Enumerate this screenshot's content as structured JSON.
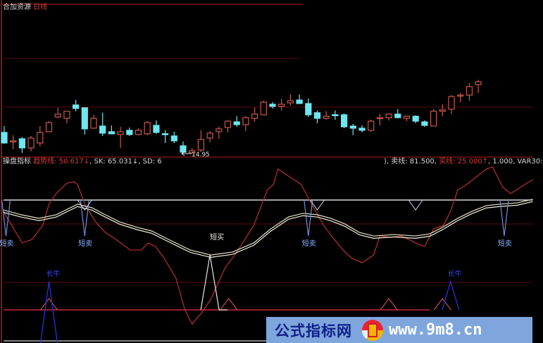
{
  "main_header": {
    "stock_name": "合加资源",
    "period": "日线"
  },
  "low_marker": "14.95",
  "indicator_header": {
    "name": "操盘指标",
    "trend_label": "趋势线:",
    "trend_value": "50.617↓",
    "rest_left": ", SK: 65.031↓, SD: 6",
    "rest_right_prefix": "), 卖线: 81.500, ",
    "buy_line": "买线: 25.000↑",
    "rest_right_suffix": ", 1.000, VAR30:"
  },
  "signal_labels": {
    "short_sell": "短卖",
    "short_buy": "短买",
    "long_bull": "长牛"
  },
  "banner": {
    "site_name": "公式指标网",
    "url": "www.9m8.cn"
  },
  "colors": {
    "up": "#c8584a",
    "down": "#6fe6f0",
    "grid": "#5a0d12",
    "axis": "#b01c24",
    "signal_blue": "#6a8fd8",
    "long_blue": "#2432d8"
  },
  "chart_data": [
    {
      "type": "candlestick",
      "title": "合加资源 日线",
      "annotations": [
        "14.95"
      ],
      "candles": [
        [
          16.45,
          16.9,
          15.65,
          15.7
        ],
        [
          15.8,
          16.25,
          15.25,
          15.85
        ],
        [
          16.0,
          16.1,
          15.0,
          15.35
        ],
        [
          15.35,
          16.2,
          15.1,
          16.05
        ],
        [
          15.7,
          16.9,
          15.45,
          16.45
        ],
        [
          16.5,
          17.25,
          16.5,
          17.15
        ],
        [
          17.55,
          18.2,
          17.45,
          17.75
        ],
        [
          17.45,
          17.95,
          17.1,
          17.95
        ],
        [
          18.4,
          18.75,
          17.95,
          18.15
        ],
        [
          18.2,
          18.2,
          16.3,
          16.7
        ],
        [
          16.75,
          17.7,
          16.75,
          17.45
        ],
        [
          16.9,
          17.85,
          16.2,
          16.4
        ],
        [
          16.5,
          16.95,
          16.35,
          16.35
        ],
        [
          16.3,
          16.85,
          15.35,
          16.5
        ],
        [
          16.6,
          16.8,
          16.2,
          16.3
        ],
        [
          16.3,
          16.75,
          16.25,
          16.6
        ],
        [
          16.35,
          17.25,
          16.25,
          17.15
        ],
        [
          16.95,
          17.3,
          16.35,
          16.45
        ],
        [
          16.36,
          16.6,
          15.7,
          16.35
        ],
        [
          16.2,
          16.5,
          15.7,
          15.85
        ],
        [
          15.5,
          15.8,
          14.95,
          15.05
        ],
        [
          15.0,
          15.35,
          15.0,
          15.15
        ],
        [
          15.2,
          16.6,
          15.05,
          15.95
        ],
        [
          16.05,
          16.55,
          15.75,
          16.4
        ],
        [
          16.5,
          16.85,
          16.0,
          16.7
        ],
        [
          16.8,
          17.3,
          16.45,
          17.25
        ],
        [
          17.2,
          17.6,
          16.85,
          17.0
        ],
        [
          17.0,
          17.6,
          16.55,
          17.5
        ],
        [
          17.45,
          18.2,
          17.2,
          17.75
        ],
        [
          17.7,
          18.7,
          17.7,
          18.6
        ],
        [
          18.45,
          18.6,
          18.15,
          18.3
        ],
        [
          18.3,
          18.85,
          18.0,
          18.45
        ],
        [
          18.55,
          19.15,
          18.35,
          18.7
        ],
        [
          18.75,
          19.15,
          18.5,
          18.5
        ],
        [
          18.5,
          18.85,
          17.55,
          17.7
        ],
        [
          17.85,
          18.0,
          17.1,
          17.45
        ],
        [
          17.45,
          17.95,
          17.35,
          17.6
        ],
        [
          17.71,
          18.0,
          17.35,
          17.7
        ],
        [
          17.7,
          17.8,
          16.75,
          16.85
        ],
        [
          16.9,
          17.05,
          16.25,
          16.75
        ],
        [
          16.75,
          16.95,
          16.45,
          16.6
        ],
        [
          16.6,
          17.35,
          16.5,
          17.25
        ],
        [
          17.49,
          17.75,
          16.95,
          17.5
        ],
        [
          17.5,
          17.8,
          17.3,
          17.75
        ],
        [
          17.75,
          18.1,
          17.45,
          17.5
        ],
        [
          17.45,
          17.65,
          17.25,
          17.6
        ],
        [
          17.6,
          17.65,
          17.1,
          17.25
        ],
        [
          17.2,
          17.3,
          16.85,
          16.95
        ],
        [
          16.9,
          18.1,
          16.9,
          17.95
        ],
        [
          17.95,
          18.45,
          17.6,
          18.05
        ],
        [
          18.1,
          19.1,
          17.75,
          19.0
        ],
        [
          19.09,
          19.25,
          18.6,
          19.1
        ],
        [
          19.1,
          19.95,
          18.7,
          19.7
        ],
        [
          19.85,
          20.2,
          19.25,
          20.05
        ]
      ]
    },
    {
      "type": "line",
      "title": "操盘指标",
      "series": [
        {
          "name": "趋势线",
          "color": "#b8302c",
          "points": [
            [
              -0.1,
              72.7
            ],
            [
              2.0,
              52.3
            ],
            [
              3.1,
              54.5
            ],
            [
              4.3,
              63.6
            ],
            [
              5.0,
              77.3
            ],
            [
              5.8,
              84.1
            ],
            [
              7.0,
              90.9
            ],
            [
              7.8,
              91.8
            ],
            [
              8.2,
              90
            ],
            [
              9.0,
              77.3
            ],
            [
              10.2,
              65.9
            ],
            [
              11.3,
              59.1
            ],
            [
              12.5,
              54.5
            ],
            [
              14.1,
              47.7
            ],
            [
              15.3,
              47.7
            ],
            [
              16.1,
              52.3
            ],
            [
              16.9,
              50
            ],
            [
              17.8,
              43.2
            ],
            [
              19.2,
              29.5
            ],
            [
              20.2,
              9.1
            ],
            [
              21.0,
              0
            ],
            [
              22.0,
              6.8
            ],
            [
              23.1,
              15.9
            ],
            [
              24.7,
              36.4
            ],
            [
              25.9,
              45.5
            ],
            [
              27.9,
              63.6
            ],
            [
              28.8,
              77.3
            ],
            [
              29.4,
              86.4
            ],
            [
              30.1,
              90
            ],
            [
              30.6,
              100
            ],
            [
              33.2,
              90
            ],
            [
              34.6,
              75
            ],
            [
              35.7,
              63.6
            ],
            [
              36.9,
              54.5
            ],
            [
              38.1,
              46.4
            ],
            [
              38.9,
              42.3
            ],
            [
              40.0,
              39.5
            ],
            [
              41.3,
              44.5
            ],
            [
              42.0,
              56.8
            ],
            [
              43.2,
              55.9
            ],
            [
              44.4,
              56.8
            ],
            [
              46.0,
              52.3
            ],
            [
              47.0,
              50
            ],
            [
              48.0,
              61.4
            ],
            [
              49.1,
              63.6
            ],
            [
              49.9,
              72.7
            ],
            [
              50.7,
              86.4
            ],
            [
              51.9,
              90.9
            ],
            [
              53.9,
              100
            ],
            [
              54.6,
              101.4
            ],
            [
              55.7,
              88.6
            ],
            [
              56.6,
              84.1
            ],
            [
              57.8,
              88.6
            ],
            [
              59.1,
              93.2
            ]
          ]
        },
        {
          "name": "SK",
          "color": "#e8e4c8",
          "points": [
            [
              -0.1,
              73.6
            ],
            [
              1.9,
              70.5
            ],
            [
              3.9,
              68.2
            ],
            [
              5.8,
              70.5
            ],
            [
              8.2,
              77.3
            ],
            [
              9.8,
              75
            ],
            [
              11.3,
              70.5
            ],
            [
              12.9,
              65.9
            ],
            [
              14.9,
              62.3
            ],
            [
              16.5,
              60
            ],
            [
              18.4,
              54.5
            ],
            [
              20.8,
              47.7
            ],
            [
              23.1,
              44.5
            ],
            [
              25.5,
              46.4
            ],
            [
              27.9,
              52.3
            ],
            [
              29.8,
              61.4
            ],
            [
              31.8,
              69.1
            ],
            [
              33.4,
              71.4
            ],
            [
              35,
              70.5
            ],
            [
              36.5,
              68.2
            ],
            [
              38.1,
              64.5
            ],
            [
              39.7,
              59.1
            ],
            [
              41.3,
              56.8
            ],
            [
              43.6,
              57.7
            ],
            [
              46,
              56.8
            ],
            [
              47.6,
              58.2
            ],
            [
              49.1,
              62.7
            ],
            [
              50.7,
              68.2
            ],
            [
              52.3,
              72.7
            ],
            [
              53.9,
              76.4
            ],
            [
              55.4,
              77.3
            ],
            [
              57.4,
              78.2
            ],
            [
              59.1,
              80.5
            ]
          ]
        },
        {
          "name": "SD",
          "color": "#f4f0e0",
          "points": [
            [
              -0.1,
              72.1
            ],
            [
              1.9,
              69.0
            ],
            [
              3.9,
              66.7
            ],
            [
              5.8,
              69.0
            ],
            [
              8.2,
              75.8
            ],
            [
              9.8,
              73.5
            ],
            [
              11.3,
              69.0
            ],
            [
              12.9,
              64.4
            ],
            [
              14.9,
              60.8
            ],
            [
              16.5,
              58.5
            ],
            [
              18.4,
              53.0
            ],
            [
              20.8,
              46.2
            ],
            [
              23.1,
              43.0
            ],
            [
              25.5,
              44.9
            ],
            [
              27.9,
              50.8
            ],
            [
              29.8,
              59.9
            ],
            [
              31.8,
              67.6
            ],
            [
              33.4,
              69.9
            ],
            [
              35,
              69.0
            ],
            [
              36.5,
              66.7
            ],
            [
              38.1,
              63.0
            ],
            [
              39.7,
              57.6
            ],
            [
              41.3,
              55.3
            ],
            [
              43.6,
              56.2
            ],
            [
              46,
              55.3
            ],
            [
              47.6,
              56.7
            ],
            [
              49.1,
              61.2
            ],
            [
              50.7,
              66.7
            ],
            [
              52.3,
              71.2
            ],
            [
              53.9,
              74.9
            ],
            [
              55.4,
              75.8
            ],
            [
              57.4,
              76.7
            ],
            [
              59.1,
              79.0
            ]
          ]
        }
      ],
      "reference_lines": {
        "sell_line": 80,
        "base_line": 9.1
      },
      "short_sell_signals": [
        0.2,
        9.0,
        34.0,
        55.9
      ],
      "short_sell_depth": 56.8,
      "small_dips": [
        9.0,
        35.0,
        46.0
      ],
      "small_dip_depth": 73.6,
      "short_buy_signal": 23.0,
      "short_buy_peak": 44.5,
      "bottom_triangles": [
        5.0,
        25.1,
        43.0,
        49.0
      ],
      "triangle_peak": 16.4,
      "long_bull_signals": [
        5.0,
        49.9
      ],
      "long_bull_peak": 27.3
    }
  ]
}
